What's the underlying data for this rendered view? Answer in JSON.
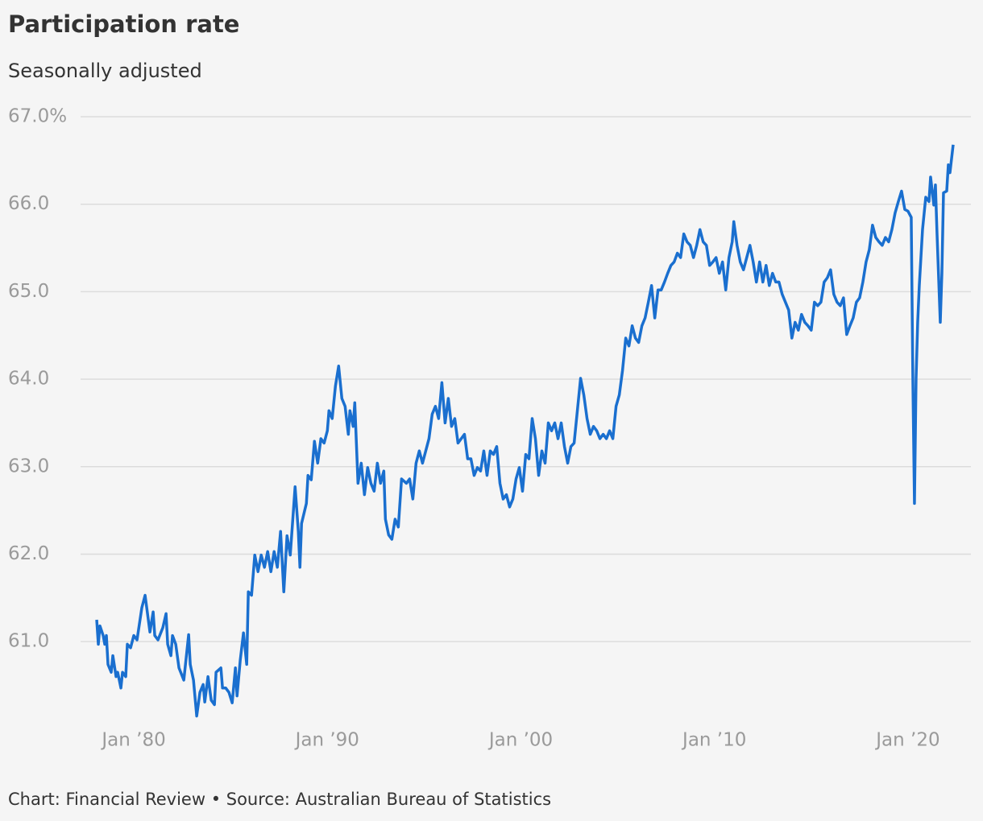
{
  "chart_data": {
    "type": "line",
    "title": "Participation rate",
    "subtitle": "Seasonally adjusted",
    "source": "Chart: Financial Review • Source: Australian Bureau of Statistics",
    "color": "#1a6fcf",
    "grid": true,
    "ylim": [
      60.1,
      67.0
    ],
    "yticks": [
      {
        "value": 61,
        "label": "61.0"
      },
      {
        "value": 62,
        "label": "62.0"
      },
      {
        "value": 63,
        "label": "63.0"
      },
      {
        "value": 64,
        "label": "64.0"
      },
      {
        "value": 65,
        "label": "65.0"
      },
      {
        "value": 66,
        "label": "66.0"
      },
      {
        "value": 67,
        "label": "67.0%"
      }
    ],
    "xlim": [
      "1977-04",
      "2023-04"
    ],
    "xticks": [
      {
        "value": "1980-01",
        "label": "Jan ’80"
      },
      {
        "value": "1990-01",
        "label": "Jan ’90"
      },
      {
        "value": "2000-01",
        "label": "Jan ’00"
      },
      {
        "value": "2010-01",
        "label": "Jan ’10"
      },
      {
        "value": "2020-01",
        "label": "Jan ’20"
      }
    ],
    "x": [
      "1978-02",
      "1978-03",
      "1978-04",
      "1978-06",
      "1978-07",
      "1978-08",
      "1978-09",
      "1978-11",
      "1978-12",
      "1979-02",
      "1979-03",
      "1979-05",
      "1979-06",
      "1979-08",
      "1979-09",
      "1979-11",
      "1980-01",
      "1980-03",
      "1980-06",
      "1980-08",
      "1980-10",
      "1980-11",
      "1981-01",
      "1981-02",
      "1981-04",
      "1981-07",
      "1981-09",
      "1981-10",
      "1981-12",
      "1982-01",
      "1982-03",
      "1982-05",
      "1982-08",
      "1982-11",
      "1982-12",
      "1983-02",
      "1983-04",
      "1983-06",
      "1983-08",
      "1983-09",
      "1983-11",
      "1984-01",
      "1984-03",
      "1984-04",
      "1984-07",
      "1984-08",
      "1984-10",
      "1984-12",
      "1985-02",
      "1985-04",
      "1985-05",
      "1985-07",
      "1985-09",
      "1985-11",
      "1985-12",
      "1986-02",
      "1986-04",
      "1986-06",
      "1986-08",
      "1986-10",
      "1986-12",
      "1987-02",
      "1987-04",
      "1987-06",
      "1987-08",
      "1987-10",
      "1987-12",
      "1988-02",
      "1988-05",
      "1988-07",
      "1988-08",
      "1988-09",
      "1988-12",
      "1989-01",
      "1989-03",
      "1989-05",
      "1989-07",
      "1989-09",
      "1989-11",
      "1990-01",
      "1990-02",
      "1990-04",
      "1990-06",
      "1990-08",
      "1990-10",
      "1990-12",
      "1991-02",
      "1991-03",
      "1991-05",
      "1991-06",
      "1991-08",
      "1991-10",
      "1991-12",
      "1992-02",
      "1992-04",
      "1992-06",
      "1992-08",
      "1992-10",
      "1992-12",
      "1993-01",
      "1993-03",
      "1993-05",
      "1993-07",
      "1993-09",
      "1993-11",
      "1994-02",
      "1994-04",
      "1994-06",
      "1994-08",
      "1994-10",
      "1994-12",
      "1995-02",
      "1995-04",
      "1995-06",
      "1995-08",
      "1995-10",
      "1995-12",
      "1996-02",
      "1996-04",
      "1996-06",
      "1996-08",
      "1996-10",
      "1996-12",
      "1997-02",
      "1997-04",
      "1997-06",
      "1997-08",
      "1997-10",
      "1997-12",
      "1998-02",
      "1998-04",
      "1998-06",
      "1998-08",
      "1998-10",
      "1998-12",
      "1999-02",
      "1999-04",
      "1999-06",
      "1999-08",
      "1999-10",
      "1999-12",
      "2000-02",
      "2000-04",
      "2000-06",
      "2000-08",
      "2000-10",
      "2000-12",
      "2001-02",
      "2001-04",
      "2001-06",
      "2001-08",
      "2001-10",
      "2001-12",
      "2002-02",
      "2002-04",
      "2002-06",
      "2002-08",
      "2002-10",
      "2002-12",
      "2003-02",
      "2003-04",
      "2003-06",
      "2003-08",
      "2003-10",
      "2003-12",
      "2004-02",
      "2004-04",
      "2004-06",
      "2004-08",
      "2004-10",
      "2004-12",
      "2005-02",
      "2005-04",
      "2005-06",
      "2005-08",
      "2005-10",
      "2005-12",
      "2006-02",
      "2006-04",
      "2006-06",
      "2006-08",
      "2006-10",
      "2006-12",
      "2007-02",
      "2007-04",
      "2007-06",
      "2007-08",
      "2007-10",
      "2007-12",
      "2008-02",
      "2008-04",
      "2008-06",
      "2008-08",
      "2008-10",
      "2008-12",
      "2009-02",
      "2009-04",
      "2009-06",
      "2009-08",
      "2009-10",
      "2009-12",
      "2010-02",
      "2010-04",
      "2010-06",
      "2010-08",
      "2010-10",
      "2010-12",
      "2011-01",
      "2011-03",
      "2011-05",
      "2011-07",
      "2011-09",
      "2011-11",
      "2012-01",
      "2012-03",
      "2012-05",
      "2012-07",
      "2012-09",
      "2012-11",
      "2013-01",
      "2013-03",
      "2013-05",
      "2013-07",
      "2013-09",
      "2013-11",
      "2014-01",
      "2014-03",
      "2014-05",
      "2014-07",
      "2014-09",
      "2014-11",
      "2015-01",
      "2015-03",
      "2015-05",
      "2015-07",
      "2015-09",
      "2015-11",
      "2016-01",
      "2016-03",
      "2016-05",
      "2016-07",
      "2016-09",
      "2016-11",
      "2017-01",
      "2017-03",
      "2017-05",
      "2017-07",
      "2017-09",
      "2017-11",
      "2018-01",
      "2018-03",
      "2018-05",
      "2018-07",
      "2018-09",
      "2018-11",
      "2019-01",
      "2019-03",
      "2019-05",
      "2019-07",
      "2019-09",
      "2019-11",
      "2020-01",
      "2020-03",
      "2020-04",
      "2020-05",
      "2020-06",
      "2020-07",
      "2020-08",
      "2020-10",
      "2020-12",
      "2021-02",
      "2021-03",
      "2021-05",
      "2021-06",
      "2021-07",
      "2021-09",
      "2021-10",
      "2021-11",
      "2022-01",
      "2022-02",
      "2022-03",
      "2022-05"
    ],
    "values": [
      61.25,
      60.97,
      61.18,
      61.07,
      60.97,
      61.07,
      60.74,
      60.65,
      60.84,
      60.6,
      60.65,
      60.47,
      60.65,
      60.6,
      60.97,
      60.93,
      61.07,
      61.02,
      61.39,
      61.53,
      61.25,
      61.11,
      61.34,
      61.07,
      61.02,
      61.16,
      61.32,
      60.97,
      60.84,
      61.07,
      60.97,
      60.7,
      60.56,
      61.08,
      60.74,
      60.56,
      60.15,
      60.42,
      60.51,
      60.31,
      60.6,
      60.33,
      60.28,
      60.65,
      60.7,
      60.47,
      60.47,
      60.42,
      60.3,
      60.7,
      60.38,
      60.79,
      61.1,
      60.74,
      61.57,
      61.53,
      61.99,
      61.8,
      61.99,
      61.85,
      62.03,
      61.8,
      62.03,
      61.85,
      62.26,
      61.57,
      62.21,
      61.99,
      62.77,
      62.26,
      61.85,
      62.35,
      62.58,
      62.9,
      62.85,
      63.29,
      63.04,
      63.32,
      63.27,
      63.41,
      63.64,
      63.55,
      63.92,
      64.15,
      63.78,
      63.69,
      63.37,
      63.64,
      63.46,
      63.73,
      62.81,
      63.04,
      62.68,
      62.99,
      62.81,
      62.72,
      63.04,
      62.81,
      62.95,
      62.4,
      62.22,
      62.17,
      62.4,
      62.31,
      62.86,
      62.81,
      62.86,
      62.63,
      63.04,
      63.18,
      63.04,
      63.18,
      63.32,
      63.6,
      63.69,
      63.55,
      63.96,
      63.5,
      63.78,
      63.46,
      63.55,
      63.27,
      63.32,
      63.37,
      63.09,
      63.09,
      62.9,
      62.99,
      62.95,
      63.18,
      62.9,
      63.18,
      63.14,
      63.23,
      62.81,
      62.63,
      62.68,
      62.54,
      62.63,
      62.86,
      62.99,
      62.72,
      63.14,
      63.09,
      63.55,
      63.32,
      62.9,
      63.18,
      63.04,
      63.5,
      63.41,
      63.5,
      63.32,
      63.5,
      63.23,
      63.04,
      63.23,
      63.27,
      63.64,
      64.01,
      63.82,
      63.55,
      63.37,
      63.46,
      63.41,
      63.32,
      63.37,
      63.32,
      63.41,
      63.32,
      63.69,
      63.82,
      64.1,
      64.47,
      64.38,
      64.61,
      64.47,
      64.42,
      64.61,
      64.7,
      64.88,
      65.07,
      64.7,
      65.02,
      65.02,
      65.11,
      65.21,
      65.3,
      65.34,
      65.44,
      65.39,
      65.66,
      65.57,
      65.53,
      65.39,
      65.53,
      65.71,
      65.57,
      65.53,
      65.3,
      65.34,
      65.39,
      65.21,
      65.34,
      65.02,
      65.39,
      65.57,
      65.8,
      65.53,
      65.34,
      65.25,
      65.39,
      65.53,
      65.34,
      65.11,
      65.34,
      65.11,
      65.3,
      65.07,
      65.21,
      65.11,
      65.11,
      64.97,
      64.88,
      64.79,
      64.47,
      64.65,
      64.56,
      64.74,
      64.65,
      64.61,
      64.56,
      64.88,
      64.84,
      64.88,
      65.11,
      65.16,
      65.25,
      64.97,
      64.88,
      64.84,
      64.93,
      64.51,
      64.61,
      64.7,
      64.88,
      64.93,
      65.11,
      65.34,
      65.48,
      65.76,
      65.62,
      65.57,
      65.53,
      65.62,
      65.57,
      65.71,
      65.9,
      66.03,
      66.15,
      65.94,
      65.92,
      65.85,
      64.01,
      62.58,
      64.01,
      64.65,
      65.07,
      65.71,
      66.08,
      66.03,
      66.31,
      65.99,
      66.22,
      65.66,
      64.65,
      65.21,
      66.13,
      66.15,
      66.45,
      66.36,
      66.68
    ]
  }
}
